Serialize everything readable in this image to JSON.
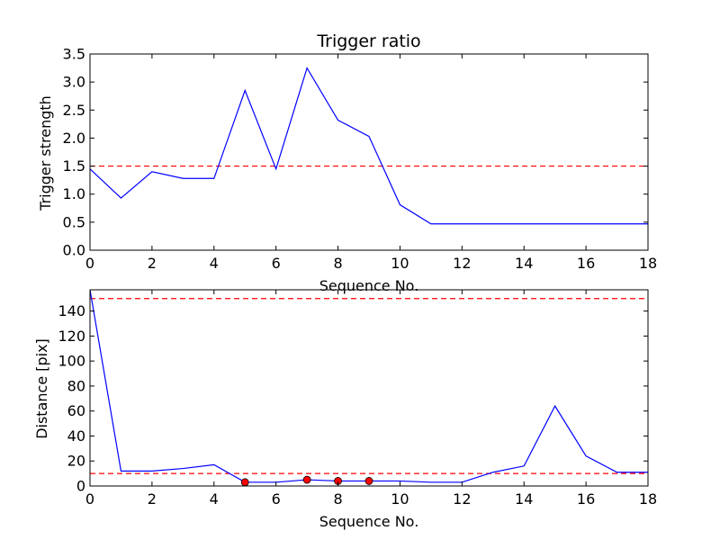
{
  "chart_data": [
    {
      "type": "line",
      "title": "Trigger ratio",
      "xlabel": "Sequence No.",
      "ylabel": "Trigger strength",
      "xlim": [
        0,
        18
      ],
      "ylim": [
        0,
        3.5
      ],
      "xticks": [
        "0",
        "2",
        "4",
        "6",
        "8",
        "10",
        "12",
        "14",
        "16",
        "18"
      ],
      "yticks": [
        "0.0",
        "0.5",
        "1.0",
        "1.5",
        "2.0",
        "2.5",
        "3.0",
        "3.5"
      ],
      "grid": false,
      "series": [
        {
          "color": "#0000ff",
          "style": "solid",
          "x": [
            0,
            1,
            2,
            3,
            4,
            5,
            6,
            7,
            8,
            9,
            10,
            11,
            12,
            13,
            14,
            15,
            16,
            17,
            18
          ],
          "y": [
            1.45,
            0.93,
            1.4,
            1.28,
            1.28,
            2.85,
            1.45,
            3.25,
            2.32,
            2.03,
            0.81,
            0.47,
            0.47,
            0.47,
            0.47,
            0.47,
            0.47,
            0.47,
            0.47
          ]
        }
      ],
      "hlines": [
        {
          "y": 1.5,
          "color": "#ff0000",
          "style": "dashed"
        }
      ]
    },
    {
      "type": "line",
      "title": "",
      "xlabel": "Sequence No.",
      "ylabel": "Distance [pix]",
      "xlim": [
        0,
        18
      ],
      "ylim": [
        0,
        157
      ],
      "xticks": [
        "0",
        "2",
        "4",
        "6",
        "8",
        "10",
        "12",
        "14",
        "16",
        "18"
      ],
      "yticks": [
        "0",
        "20",
        "40",
        "60",
        "80",
        "100",
        "120",
        "140"
      ],
      "grid": false,
      "series": [
        {
          "color": "#0000ff",
          "style": "solid",
          "x": [
            0,
            1,
            2,
            3,
            4,
            5,
            6,
            7,
            8,
            9,
            10,
            11,
            12,
            13,
            14,
            15,
            16,
            17,
            18
          ],
          "y": [
            157,
            12,
            12,
            14,
            17,
            3,
            3,
            5,
            4,
            4,
            4,
            3,
            3,
            11,
            16,
            64,
            24,
            11,
            11
          ]
        }
      ],
      "markers": {
        "color": "#ff0000",
        "edge": "#000000",
        "x": [
          5,
          7,
          8,
          9
        ],
        "y": [
          3,
          5,
          4,
          4
        ]
      },
      "hlines": [
        {
          "y": 150,
          "color": "#ff0000",
          "style": "dashed"
        },
        {
          "y": 10,
          "color": "#ff0000",
          "style": "dashed"
        }
      ]
    }
  ]
}
